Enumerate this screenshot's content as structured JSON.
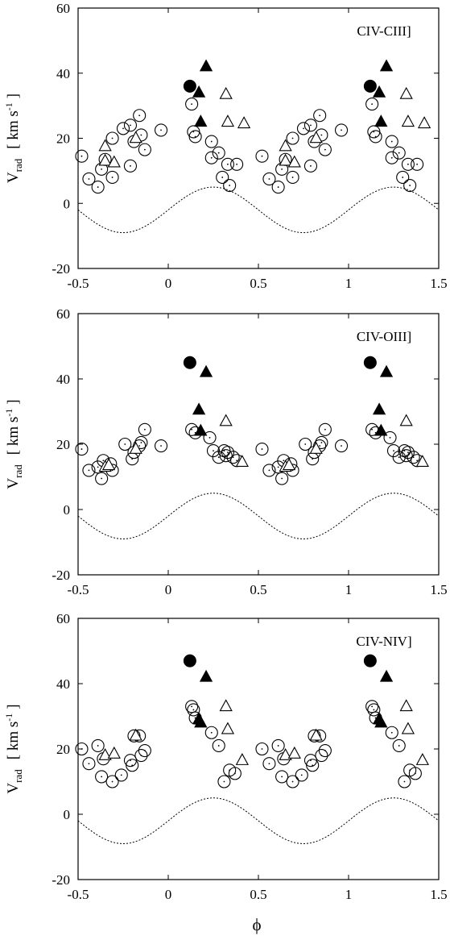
{
  "figure": {
    "xlabel_symbol": "ϕ",
    "ylabel": {
      "main": "V",
      "sub": "rad",
      "unit": "[ km s",
      "unit_sup": "-1",
      "unit_close": "]"
    },
    "colors": {
      "ink": "#000000",
      "background": "#ffffff"
    }
  },
  "chart_data": [
    {
      "type": "scatter",
      "label": "CIV-CIII]",
      "xlim": [
        -0.5,
        1.5
      ],
      "ylim": [
        -20,
        60
      ],
      "xticks": [
        -0.5,
        0,
        0.5,
        1,
        1.5
      ],
      "xtick_labels": [
        "-0.5",
        "0",
        "0.5",
        "1",
        "1.5"
      ],
      "yticks": [
        -20,
        0,
        20,
        40,
        60
      ],
      "ytick_labels": [
        "-20",
        "0",
        "20",
        "40",
        "60"
      ],
      "grid": false,
      "series": [
        {
          "marker": "open-circle-dot",
          "points": [
            [
              -0.48,
              14.5
            ],
            [
              -0.44,
              7.5
            ],
            [
              -0.39,
              5
            ],
            [
              -0.37,
              10.5
            ],
            [
              -0.35,
              13.5
            ],
            [
              -0.31,
              8
            ],
            [
              -0.31,
              20
            ],
            [
              -0.25,
              23
            ],
            [
              -0.21,
              24
            ],
            [
              -0.21,
              11.5
            ],
            [
              -0.19,
              19
            ],
            [
              -0.16,
              27
            ],
            [
              -0.15,
              21
            ],
            [
              -0.13,
              16.5
            ],
            [
              -0.04,
              22.5
            ],
            [
              0.13,
              30.5
            ],
            [
              0.14,
              22
            ],
            [
              0.15,
              20.5
            ],
            [
              0.24,
              19
            ],
            [
              0.24,
              14
            ],
            [
              0.28,
              15.5
            ],
            [
              0.3,
              8
            ],
            [
              0.33,
              12
            ],
            [
              0.34,
              5.5
            ],
            [
              0.38,
              12
            ]
          ]
        },
        {
          "marker": "open-triangle",
          "points": [
            [
              -0.35,
              17.5
            ],
            [
              -0.35,
              13
            ],
            [
              -0.3,
              12.5
            ],
            [
              -0.18,
              20
            ],
            [
              0.32,
              33.5
            ],
            [
              0.33,
              25
            ],
            [
              0.42,
              24.5
            ]
          ]
        },
        {
          "marker": "filled-triangle",
          "points": [
            [
              0.17,
              34
            ],
            [
              0.18,
              25
            ],
            [
              0.21,
              42
            ]
          ]
        },
        {
          "marker": "filled-circle",
          "points": [
            [
              0.12,
              36
            ]
          ]
        }
      ],
      "model_curve": {
        "style": "dotted",
        "function": "sinusoid",
        "amplitude": 7,
        "offset": -2,
        "phase_of_max": 0.25
      }
    },
    {
      "type": "scatter",
      "label": "CIV-OIII]",
      "xlim": [
        -0.5,
        1.5
      ],
      "ylim": [
        -20,
        60
      ],
      "xticks": [
        -0.5,
        0,
        0.5,
        1,
        1.5
      ],
      "xtick_labels": [
        "-0.5",
        "0",
        "0.5",
        "1",
        "1.5"
      ],
      "yticks": [
        -20,
        0,
        20,
        40,
        60
      ],
      "ytick_labels": [
        "-20",
        "0",
        "20",
        "40",
        "60"
      ],
      "grid": false,
      "series": [
        {
          "marker": "open-circle-dot",
          "points": [
            [
              -0.48,
              18.5
            ],
            [
              -0.44,
              12
            ],
            [
              -0.39,
              13
            ],
            [
              -0.37,
              9.5
            ],
            [
              -0.36,
              15
            ],
            [
              -0.32,
              14
            ],
            [
              -0.31,
              12
            ],
            [
              -0.24,
              20
            ],
            [
              -0.2,
              15.5
            ],
            [
              -0.19,
              17.5
            ],
            [
              -0.16,
              19.5
            ],
            [
              -0.15,
              20.5
            ],
            [
              -0.13,
              24.5
            ],
            [
              -0.04,
              19.5
            ],
            [
              0.13,
              24.5
            ],
            [
              0.15,
              23.5
            ],
            [
              0.23,
              22
            ],
            [
              0.25,
              18
            ],
            [
              0.28,
              16
            ],
            [
              0.31,
              18
            ],
            [
              0.32,
              16.5
            ],
            [
              0.33,
              17.5
            ],
            [
              0.36,
              16
            ],
            [
              0.38,
              15
            ]
          ]
        },
        {
          "marker": "open-triangle",
          "points": [
            [
              -0.35,
              13
            ],
            [
              -0.33,
              13.5
            ],
            [
              -0.18,
              18.5
            ],
            [
              0.32,
              27
            ],
            [
              0.41,
              14.5
            ]
          ]
        },
        {
          "marker": "filled-triangle",
          "points": [
            [
              0.17,
              30.5
            ],
            [
              0.18,
              24
            ],
            [
              0.21,
              42
            ]
          ]
        },
        {
          "marker": "filled-circle",
          "points": [
            [
              0.12,
              45
            ]
          ]
        }
      ],
      "model_curve": {
        "style": "dotted",
        "function": "sinusoid",
        "amplitude": 7,
        "offset": -2,
        "phase_of_max": 0.25
      }
    },
    {
      "type": "scatter",
      "label": "CIV-NIV]",
      "xlim": [
        -0.5,
        1.5
      ],
      "ylim": [
        -20,
        60
      ],
      "xticks": [
        -0.5,
        0,
        0.5,
        1,
        1.5
      ],
      "xtick_labels": [
        "-0.5",
        "0",
        "0.5",
        "1",
        "1.5"
      ],
      "yticks": [
        -20,
        0,
        20,
        40,
        60
      ],
      "ytick_labels": [
        "-20",
        "0",
        "20",
        "40",
        "60"
      ],
      "grid": false,
      "series": [
        {
          "marker": "open-circle-dot",
          "points": [
            [
              -0.48,
              20
            ],
            [
              -0.44,
              15.5
            ],
            [
              -0.39,
              21
            ],
            [
              -0.37,
              11.5
            ],
            [
              -0.36,
              17
            ],
            [
              -0.31,
              10
            ],
            [
              -0.26,
              12
            ],
            [
              -0.21,
              16.5
            ],
            [
              -0.2,
              15
            ],
            [
              -0.19,
              24
            ],
            [
              -0.16,
              24
            ],
            [
              -0.15,
              18
            ],
            [
              -0.13,
              19.5
            ],
            [
              0.13,
              33
            ],
            [
              0.14,
              32
            ],
            [
              0.15,
              29.5
            ],
            [
              0.24,
              25
            ],
            [
              0.28,
              21
            ],
            [
              0.31,
              10
            ],
            [
              0.34,
              13.5
            ],
            [
              0.37,
              12.5
            ]
          ]
        },
        {
          "marker": "open-triangle",
          "points": [
            [
              -0.35,
              18
            ],
            [
              -0.3,
              18.5
            ],
            [
              -0.18,
              24
            ],
            [
              0.32,
              33
            ],
            [
              0.33,
              26
            ],
            [
              0.41,
              16.5
            ]
          ]
        },
        {
          "marker": "filled-triangle",
          "points": [
            [
              0.17,
              29
            ],
            [
              0.18,
              28
            ],
            [
              0.21,
              42
            ]
          ]
        },
        {
          "marker": "filled-circle",
          "points": [
            [
              0.12,
              47
            ]
          ]
        }
      ],
      "model_curve": {
        "style": "dotted",
        "function": "sinusoid",
        "amplitude": 7,
        "offset": -2,
        "phase_of_max": 0.25
      }
    }
  ]
}
